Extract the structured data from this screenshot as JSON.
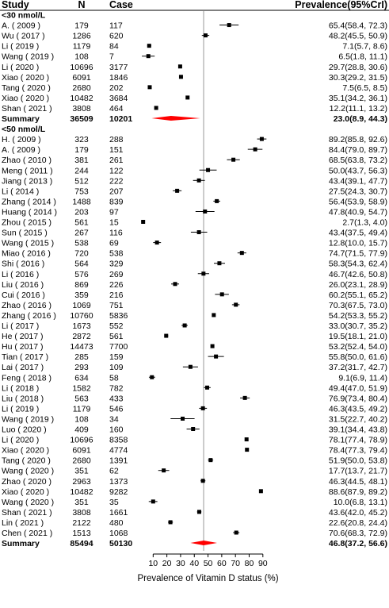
{
  "chart_data": {
    "type": "forest",
    "columns": {
      "study": "Study",
      "n": "N",
      "case": "Case",
      "prevalence": "Prevalence(95%CrI)"
    },
    "xlabel": "Prevalence of Vitamin D status (%)",
    "xlim": [
      0,
      93
    ],
    "xticks": [
      "10",
      "20",
      "30",
      "40",
      "50",
      "60",
      "70",
      "80",
      "90"
    ],
    "xtick_values": [
      10,
      20,
      30,
      40,
      50,
      60,
      70,
      80,
      90
    ],
    "reference_line": 46.8,
    "colors": {
      "summary": "#ff0000",
      "point": "#000000",
      "refline": "#bbbbbb"
    },
    "groups": [
      {
        "label": "<30 nmol/L",
        "studies": [
          {
            "study": "A. ( 2009 )",
            "n": "179",
            "case": "117",
            "est": 65.4,
            "lo": 58.4,
            "hi": 72.3,
            "ci": "65.4(58.4, 72.3)"
          },
          {
            "study": "Wu ( 2017 )",
            "n": "1286",
            "case": "620",
            "est": 48.2,
            "lo": 45.5,
            "hi": 50.9,
            "ci": "48.2(45.5, 50.9)"
          },
          {
            "study": "Li ( 2019 )",
            "n": "1179",
            "case": "84",
            "est": 7.1,
            "lo": 5.7,
            "hi": 8.6,
            "ci": "7.1(5.7, 8.6)"
          },
          {
            "study": "Wang ( 2019 )",
            "n": "108",
            "case": "7",
            "est": 6.5,
            "lo": 1.8,
            "hi": 11.1,
            "ci": "6.5(1.8, 11.1)"
          },
          {
            "study": "Li ( 2020 )",
            "n": "10696",
            "case": "3177",
            "est": 29.7,
            "lo": 28.8,
            "hi": 30.6,
            "ci": "29.7(28.8, 30.6)"
          },
          {
            "study": "Xiao ( 2020 )",
            "n": "6091",
            "case": "1846",
            "est": 30.3,
            "lo": 29.2,
            "hi": 31.5,
            "ci": "30.3(29.2, 31.5)"
          },
          {
            "study": "Tang ( 2020 )",
            "n": "2680",
            "case": "202",
            "est": 7.5,
            "lo": 6.5,
            "hi": 8.5,
            "ci": "7.5(6.5, 8.5)"
          },
          {
            "study": "Xiao ( 2020 )",
            "n": "10482",
            "case": "3684",
            "est": 35.1,
            "lo": 34.2,
            "hi": 36.1,
            "ci": "35.1(34.2, 36.1)"
          },
          {
            "study": "Shan ( 2021 )",
            "n": "3808",
            "case": "464",
            "est": 12.2,
            "lo": 11.1,
            "hi": 13.2,
            "ci": "12.2(11.1, 13.2)"
          }
        ],
        "summary": {
          "label": "Summary",
          "n": "36509",
          "case": "10201",
          "est": 23.0,
          "lo": 8.9,
          "hi": 44.3,
          "ci": "23.0(8.9, 44.3)"
        }
      },
      {
        "label": "<50 nmol/L",
        "studies": [
          {
            "study": "H. ( 2009 )",
            "n": "323",
            "case": "288",
            "est": 89.2,
            "lo": 85.8,
            "hi": 92.6,
            "ci": "89.2(85.8, 92.6)"
          },
          {
            "study": "A. ( 2009 )",
            "n": "179",
            "case": "151",
            "est": 84.4,
            "lo": 79.0,
            "hi": 89.7,
            "ci": "84.4(79.0, 89.7)"
          },
          {
            "study": "Zhao ( 2010 )",
            "n": "381",
            "case": "261",
            "est": 68.5,
            "lo": 63.8,
            "hi": 73.2,
            "ci": "68.5(63.8, 73.2)"
          },
          {
            "study": "Meng ( 2011 )",
            "n": "244",
            "case": "122",
            "est": 50.0,
            "lo": 43.7,
            "hi": 56.3,
            "ci": "50.0(43.7, 56.3)"
          },
          {
            "study": "Jiang ( 2013 )",
            "n": "512",
            "case": "222",
            "est": 43.4,
            "lo": 39.1,
            "hi": 47.7,
            "ci": "43.4(39.1, 47.7)"
          },
          {
            "study": "Li ( 2014 )",
            "n": "753",
            "case": "207",
            "est": 27.5,
            "lo": 24.3,
            "hi": 30.7,
            "ci": "27.5(24.3, 30.7)"
          },
          {
            "study": "Zhang ( 2014 )",
            "n": "1488",
            "case": "839",
            "est": 56.4,
            "lo": 53.9,
            "hi": 58.9,
            "ci": "56.4(53.9, 58.9)"
          },
          {
            "study": "Huang ( 2014 )",
            "n": "203",
            "case": "97",
            "est": 47.8,
            "lo": 40.9,
            "hi": 54.7,
            "ci": "47.8(40.9, 54.7)"
          },
          {
            "study": "Zhou ( 2015 )",
            "n": "561",
            "case": "15",
            "est": 2.7,
            "lo": 1.3,
            "hi": 4.0,
            "ci": "2.7(1.3, 4.0)"
          },
          {
            "study": "Sun ( 2015 )",
            "n": "267",
            "case": "116",
            "est": 43.4,
            "lo": 37.5,
            "hi": 49.4,
            "ci": "43.4(37.5, 49.4)"
          },
          {
            "study": "Wang ( 2015 )",
            "n": "538",
            "case": "69",
            "est": 12.8,
            "lo": 10.0,
            "hi": 15.7,
            "ci": "12.8(10.0, 15.7)"
          },
          {
            "study": "Miao ( 2016 )",
            "n": "720",
            "case": "538",
            "est": 74.7,
            "lo": 71.5,
            "hi": 77.9,
            "ci": "74.7(71.5, 77.9)"
          },
          {
            "study": "Shi ( 2016 )",
            "n": "564",
            "case": "329",
            "est": 58.3,
            "lo": 54.3,
            "hi": 62.4,
            "ci": "58.3(54.3, 62.4)"
          },
          {
            "study": "Li ( 2016 )",
            "n": "576",
            "case": "269",
            "est": 46.7,
            "lo": 42.6,
            "hi": 50.8,
            "ci": "46.7(42.6, 50.8)"
          },
          {
            "study": "Liu ( 2016 )",
            "n": "869",
            "case": "226",
            "est": 26.0,
            "lo": 23.1,
            "hi": 28.9,
            "ci": "26.0(23.1, 28.9)"
          },
          {
            "study": "Cui ( 2016 )",
            "n": "359",
            "case": "216",
            "est": 60.2,
            "lo": 55.1,
            "hi": 65.2,
            "ci": "60.2(55.1, 65.2)"
          },
          {
            "study": "Zhao ( 2016 )",
            "n": "1069",
            "case": "751",
            "est": 70.3,
            "lo": 67.5,
            "hi": 73.0,
            "ci": "70.3(67.5, 73.0)"
          },
          {
            "study": "Zhang ( 2016 )",
            "n": "10760",
            "case": "5836",
            "est": 54.2,
            "lo": 53.3,
            "hi": 55.2,
            "ci": "54.2(53.3, 55.2)"
          },
          {
            "study": "Li ( 2017 )",
            "n": "1673",
            "case": "552",
            "est": 33.0,
            "lo": 30.7,
            "hi": 35.2,
            "ci": "33.0(30.7, 35.2)"
          },
          {
            "study": "He ( 2017 )",
            "n": "2872",
            "case": "561",
            "est": 19.5,
            "lo": 18.1,
            "hi": 21.0,
            "ci": "19.5(18.1, 21.0)"
          },
          {
            "study": "Hu ( 2017 )",
            "n": "14473",
            "case": "7700",
            "est": 53.2,
            "lo": 52.4,
            "hi": 54.0,
            "ci": "53.2(52.4, 54.0)"
          },
          {
            "study": "Tian ( 2017 )",
            "n": "285",
            "case": "159",
            "est": 55.8,
            "lo": 50.0,
            "hi": 61.6,
            "ci": "55.8(50.0, 61.6)"
          },
          {
            "study": "Lai ( 2017 )",
            "n": "293",
            "case": "109",
            "est": 37.2,
            "lo": 31.7,
            "hi": 42.7,
            "ci": "37.2(31.7, 42.7)"
          },
          {
            "study": "Feng ( 2018 )",
            "n": "634",
            "case": "58",
            "est": 9.1,
            "lo": 6.9,
            "hi": 11.4,
            "ci": "9.1(6.9, 11.4)"
          },
          {
            "study": "Li ( 2018 )",
            "n": "1582",
            "case": "782",
            "est": 49.4,
            "lo": 47.0,
            "hi": 51.9,
            "ci": "49.4(47.0, 51.9)"
          },
          {
            "study": "Liu ( 2018 )",
            "n": "563",
            "case": "433",
            "est": 76.9,
            "lo": 73.4,
            "hi": 80.4,
            "ci": "76.9(73.4, 80.4)"
          },
          {
            "study": "Li ( 2019 )",
            "n": "1179",
            "case": "546",
            "est": 46.3,
            "lo": 43.5,
            "hi": 49.2,
            "ci": "46.3(43.5, 49.2)"
          },
          {
            "study": "Wang ( 2019 )",
            "n": "108",
            "case": "34",
            "est": 31.5,
            "lo": 22.7,
            "hi": 40.2,
            "ci": "31.5(22.7, 40.2)"
          },
          {
            "study": "Luo ( 2020 )",
            "n": "409",
            "case": "160",
            "est": 39.1,
            "lo": 34.4,
            "hi": 43.8,
            "ci": "39.1(34.4, 43.8)"
          },
          {
            "study": "Li ( 2020 )",
            "n": "10696",
            "case": "8358",
            "est": 78.1,
            "lo": 77.4,
            "hi": 78.9,
            "ci": "78.1(77.4, 78.9)"
          },
          {
            "study": "Xiao ( 2020 )",
            "n": "6091",
            "case": "4774",
            "est": 78.4,
            "lo": 77.3,
            "hi": 79.4,
            "ci": "78.4(77.3, 79.4)"
          },
          {
            "study": "Tang ( 2020 )",
            "n": "2680",
            "case": "1391",
            "est": 51.9,
            "lo": 50.0,
            "hi": 53.8,
            "ci": "51.9(50.0, 53.8)"
          },
          {
            "study": "Wang ( 2020 )",
            "n": "351",
            "case": "62",
            "est": 17.7,
            "lo": 13.7,
            "hi": 21.7,
            "ci": "17.7(13.7, 21.7)"
          },
          {
            "study": "Zhao ( 2020 )",
            "n": "2963",
            "case": "1373",
            "est": 46.3,
            "lo": 44.5,
            "hi": 48.1,
            "ci": "46.3(44.5, 48.1)"
          },
          {
            "study": "Xiao ( 2020 )",
            "n": "10482",
            "case": "9282",
            "est": 88.6,
            "lo": 87.9,
            "hi": 89.2,
            "ci": "88.6(87.9, 89.2)"
          },
          {
            "study": "Wang ( 2020 )",
            "n": "351",
            "case": "35",
            "est": 10.0,
            "lo": 6.8,
            "hi": 13.1,
            "ci": "10.0(6.8, 13.1)"
          },
          {
            "study": "Shan ( 2021 )",
            "n": "3808",
            "case": "1661",
            "est": 43.6,
            "lo": 42.0,
            "hi": 45.2,
            "ci": "43.6(42.0, 45.2)"
          },
          {
            "study": "Lin ( 2021 )",
            "n": "2122",
            "case": "480",
            "est": 22.6,
            "lo": 20.8,
            "hi": 24.4,
            "ci": "22.6(20.8, 24.4)"
          },
          {
            "study": "Chen ( 2021 )",
            "n": "1513",
            "case": "1068",
            "est": 70.6,
            "lo": 68.3,
            "hi": 72.9,
            "ci": "70.6(68.3, 72.9)"
          }
        ],
        "summary": {
          "label": "Summary",
          "n": "85494",
          "case": "50130",
          "est": 46.8,
          "lo": 37.2,
          "hi": 56.6,
          "ci": "46.8(37.2, 56.6)"
        }
      }
    ]
  }
}
